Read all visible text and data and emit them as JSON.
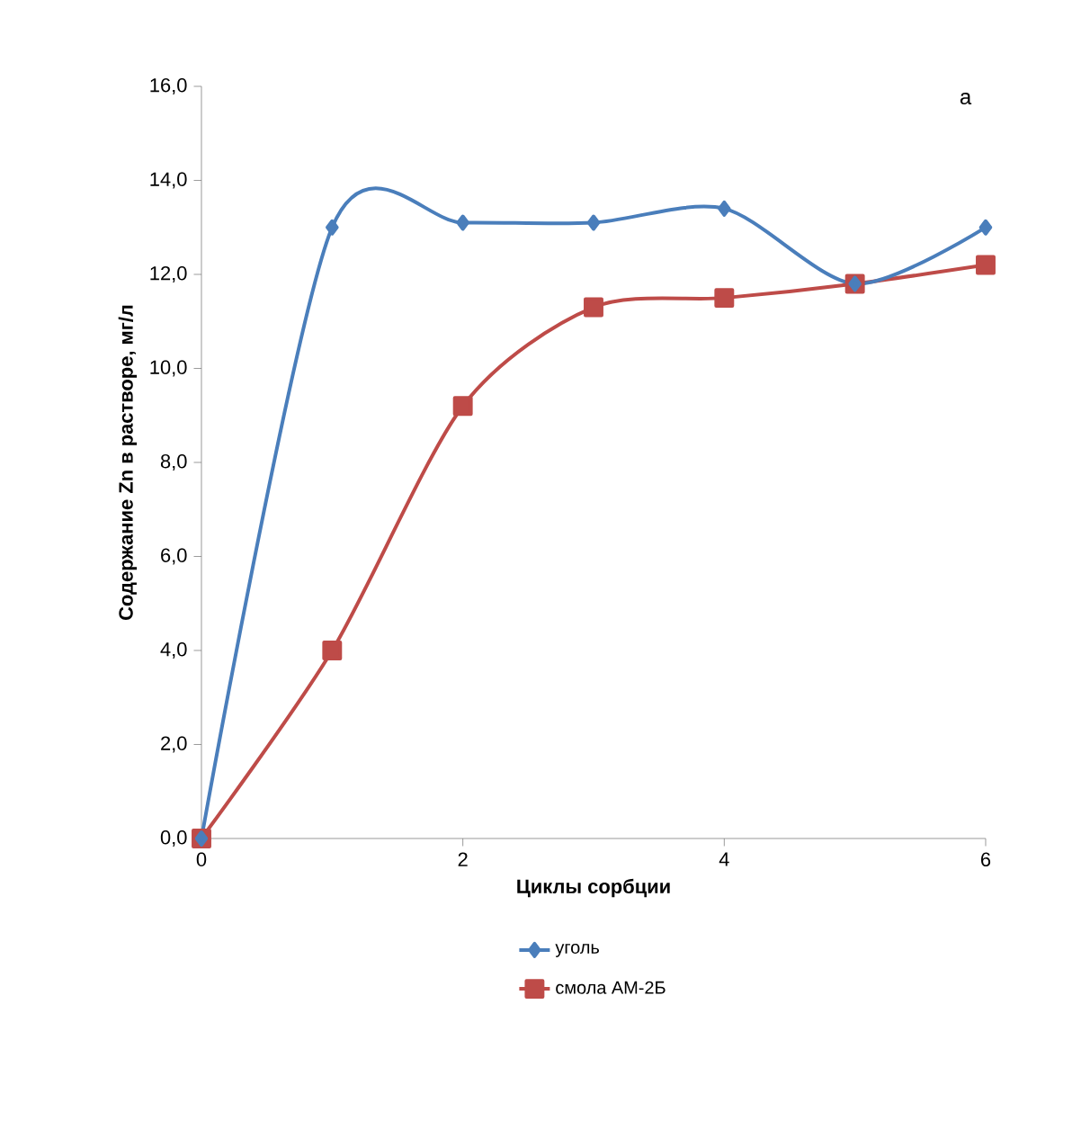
{
  "chart_data": {
    "type": "line",
    "xlabel": "Циклы сорбции",
    "ylabel": "Содержание Zn в растворе, мг/л",
    "annotations": [
      "а"
    ],
    "x": [
      0,
      1,
      2,
      3,
      4,
      5,
      6
    ],
    "series": [
      {
        "name": "уголь",
        "color": "#4a7ebb",
        "marker": "diamond",
        "values": [
          0,
          13.0,
          13.1,
          13.1,
          13.4,
          11.8,
          13.0
        ]
      },
      {
        "name": "смола АМ-2Б",
        "color": "#be4b48",
        "marker": "square",
        "values": [
          0,
          4.0,
          9.2,
          11.3,
          11.5,
          11.8,
          12.2
        ]
      }
    ],
    "xlim": [
      0,
      6
    ],
    "xticks": [
      0,
      2,
      4,
      6
    ],
    "ylim": [
      0,
      16
    ],
    "yticks": [
      {
        "value": 0,
        "label": "0,0"
      },
      {
        "value": 2,
        "label": "2,0"
      },
      {
        "value": 4,
        "label": "4,0"
      },
      {
        "value": 6,
        "label": "6,0"
      },
      {
        "value": 8,
        "label": "8,0"
      },
      {
        "value": 10,
        "label": "10,0"
      },
      {
        "value": 12,
        "label": "12,0"
      },
      {
        "value": 14,
        "label": "14,0"
      },
      {
        "value": 16,
        "label": "16,0"
      }
    ],
    "grid": false,
    "legend": "bottom"
  }
}
